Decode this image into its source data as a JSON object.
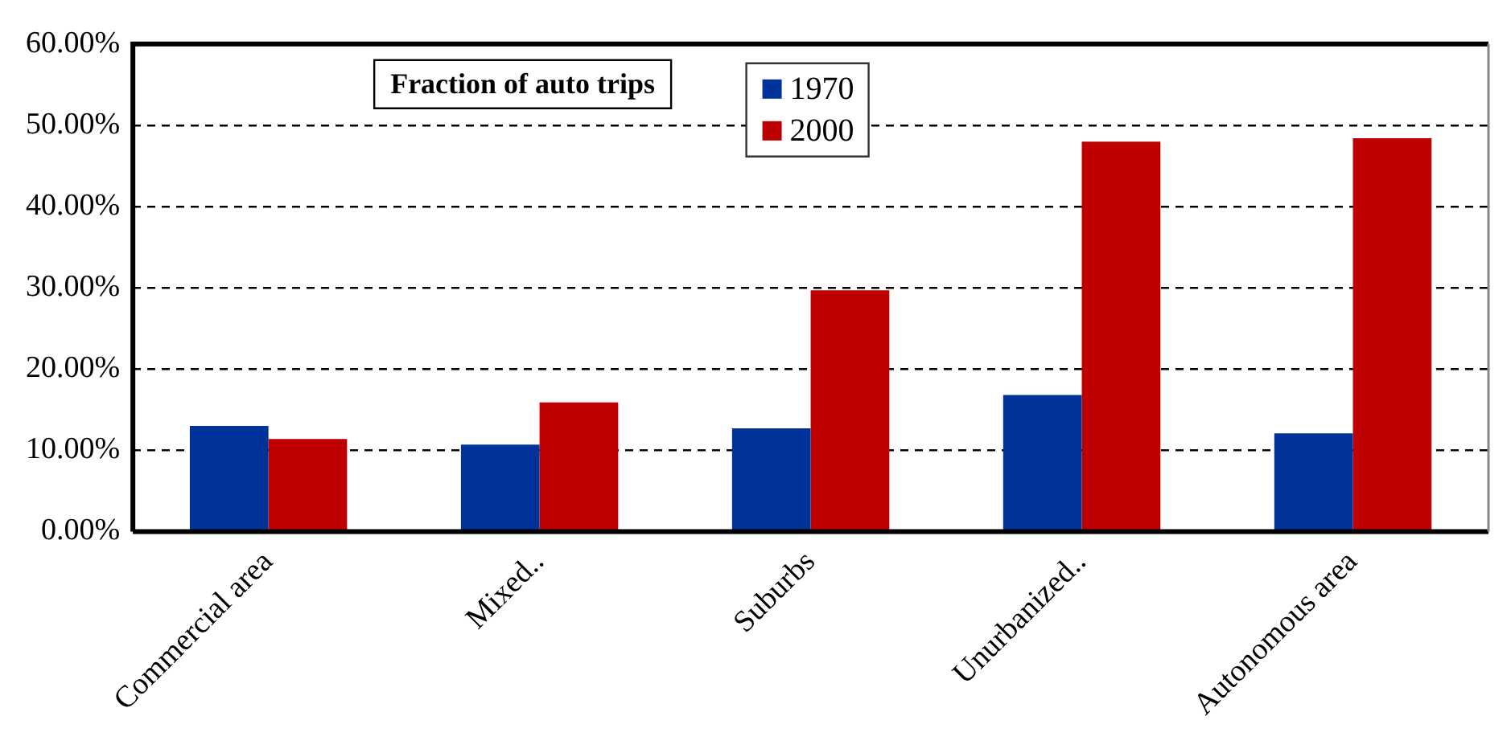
{
  "chart_data": {
    "type": "bar",
    "title": "Fraction of auto trips",
    "categories": [
      "Commercial area",
      "Mixed..",
      "Suburbs",
      "Unurbanized..",
      "Autonomous area"
    ],
    "series": [
      {
        "name": "1970",
        "color": "#003399",
        "values": [
          13.0,
          10.7,
          12.7,
          16.8,
          12.1
        ]
      },
      {
        "name": "2000",
        "color": "#c00000",
        "values": [
          11.4,
          15.9,
          29.7,
          48.0,
          48.4
        ]
      }
    ],
    "ylim": [
      0,
      60
    ],
    "yticks": [
      {
        "value": 0,
        "label": "0.00%"
      },
      {
        "value": 10,
        "label": "10.00%"
      },
      {
        "value": 20,
        "label": "20.00%"
      },
      {
        "value": 30,
        "label": "30.00%"
      },
      {
        "value": 40,
        "label": "40.00%"
      },
      {
        "value": 50,
        "label": "50.00%"
      },
      {
        "value": 60,
        "label": "60.00%"
      }
    ],
    "grid": "y",
    "legend": "top"
  }
}
